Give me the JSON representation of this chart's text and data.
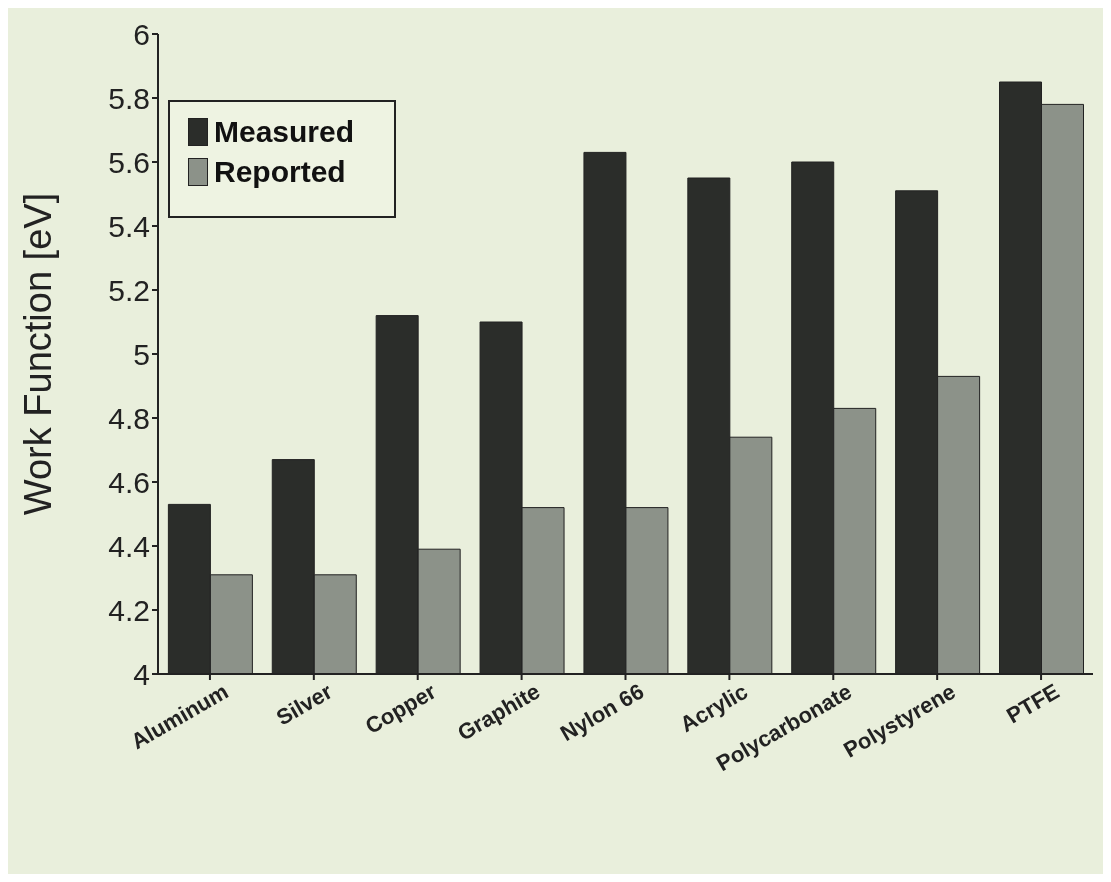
{
  "chart_data": {
    "type": "bar",
    "ylabel": "Work Function [eV]",
    "categories": [
      "Aluminum",
      "Silver",
      "Copper",
      "Graphite",
      "Nylon 66",
      "Acrylic",
      "Polycarbonate",
      "Polystyrene",
      "PTFE"
    ],
    "series": [
      {
        "name": "Measured",
        "color": "#2b2d2a",
        "values": [
          4.53,
          4.67,
          5.12,
          5.1,
          5.63,
          5.55,
          5.6,
          5.51,
          5.85
        ]
      },
      {
        "name": "Reported",
        "color": "#8c9289",
        "values": [
          4.31,
          4.31,
          4.39,
          4.52,
          4.52,
          4.74,
          4.83,
          4.93,
          5.78
        ]
      }
    ],
    "ylim": [
      4,
      6
    ],
    "yticks": [
      4,
      4.2,
      4.4,
      4.6,
      4.8,
      5,
      5.2,
      5.4,
      5.6,
      5.8,
      6
    ],
    "legend": "top left"
  }
}
